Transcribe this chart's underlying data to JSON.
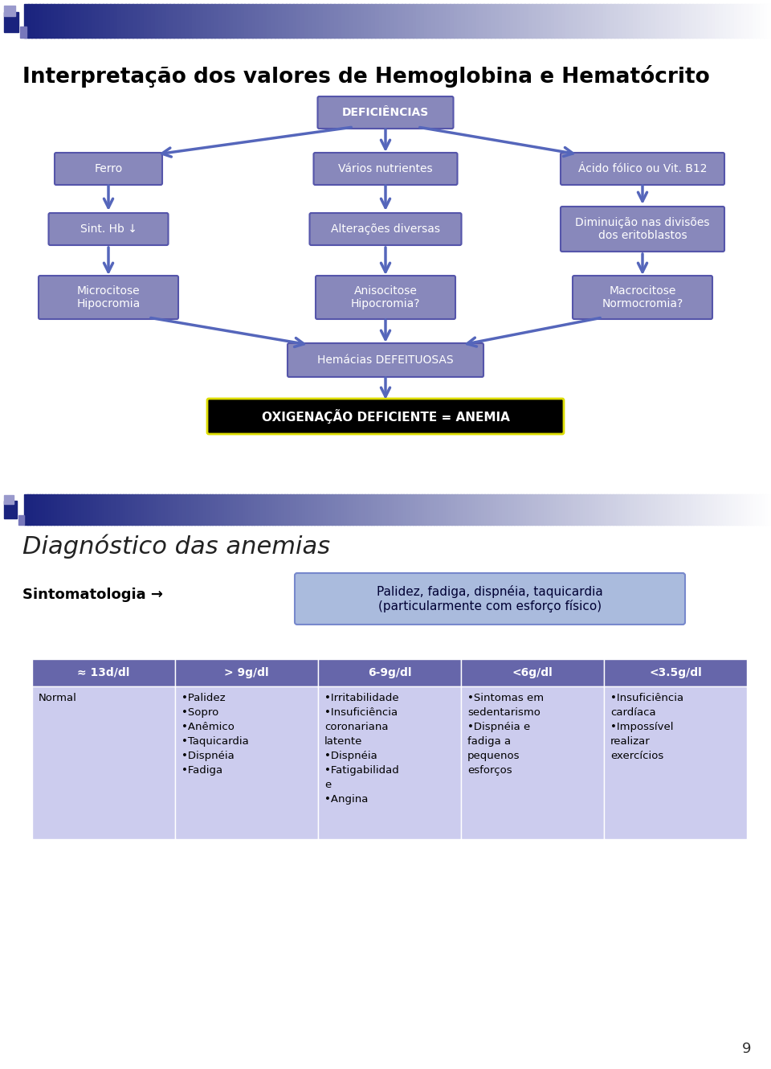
{
  "title": "Interpretação dos valores de Hemoglobina e Hematócrito",
  "bg_color": "#ffffff",
  "box_fill": "#8888bb",
  "box_edge": "#5555aa",
  "box_text_color": "#ffffff",
  "arrow_color": "#5566bb",
  "section2_title": "Diagnóstico das anemias",
  "sintomatologia_label": "Sintomatologia →",
  "sintomatologia_box": "Palidez, fadiga, dispnéia, taquicardia\n(particularmente com esforço físico)",
  "table_headers": [
    "≈ 13d/dl",
    "> 9g/dl",
    "6-9g/dl",
    "<6g/dl",
    "<3.5g/dl"
  ],
  "table_col1": "Normal",
  "table_col2": "•Palidez\n•Sopro\n•Anêmico\n•Taquicardia\n•Dispnéia\n•Fadiga",
  "table_col3": "•Irritabilidade\n•Insuficiência\ncoronariana\nlatente\n•Dispnéia\n•Fatigabilidad\ne\n•Angina",
  "table_col4": "•Sintomas em\nsedentarismo\n•Dispnéia e\nfadiga a\npequenos\nesforços",
  "table_col5": "•Insuficiência\ncardíaca\n•Impossível\nrealizar\nexercícios",
  "header_fill": "#6666aa",
  "row_fill": "#ccccee",
  "page_number": "9"
}
